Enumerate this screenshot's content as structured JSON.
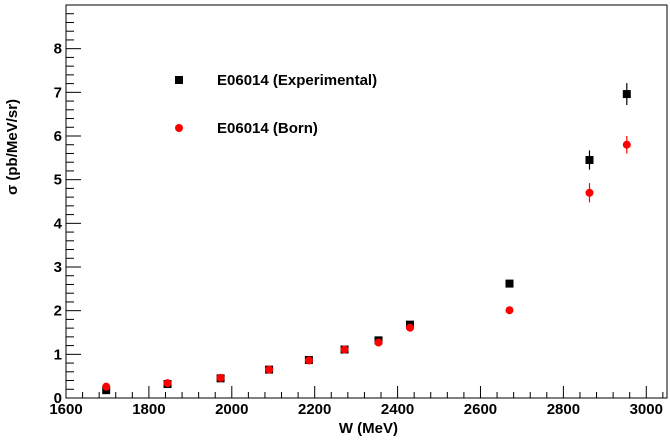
{
  "chart_data": {
    "type": "scatter",
    "title": "",
    "xlabel": "W (MeV)",
    "ylabel": "σ (pb/MeV/sr)",
    "xlim": [
      1600,
      3050
    ],
    "ylim": [
      0,
      9
    ],
    "x_ticks": [
      "1600",
      "1800",
      "2000",
      "2200",
      "2400",
      "2600",
      "2800",
      "3000"
    ],
    "y_ticks": [
      "0",
      "1",
      "2",
      "3",
      "4",
      "5",
      "6",
      "7",
      "8"
    ],
    "legend_position": "upper-left",
    "series": [
      {
        "name": "E06014 (Experimental)",
        "marker": "square",
        "color": "#000000",
        "points": [
          {
            "x": 1697,
            "y": 0.18,
            "err": 0.04
          },
          {
            "x": 1845,
            "y": 0.32,
            "err": 0.03
          },
          {
            "x": 1973,
            "y": 0.45,
            "err": 0.03
          },
          {
            "x": 2090,
            "y": 0.65,
            "err": 0.03
          },
          {
            "x": 2186,
            "y": 0.87,
            "err": 0.03
          },
          {
            "x": 2272,
            "y": 1.11,
            "err": 0.04
          },
          {
            "x": 2354,
            "y": 1.32,
            "err": 0.04
          },
          {
            "x": 2430,
            "y": 1.68,
            "err": 0.05
          },
          {
            "x": 2670,
            "y": 2.62,
            "err": 0.08
          },
          {
            "x": 2863,
            "y": 5.45,
            "err": 0.22
          },
          {
            "x": 2953,
            "y": 6.96,
            "err": 0.25
          }
        ]
      },
      {
        "name": "E06014 (Born)",
        "marker": "circle",
        "color": "#ff0000",
        "points": [
          {
            "x": 1697,
            "y": 0.26,
            "err": 0.03
          },
          {
            "x": 1845,
            "y": 0.34,
            "err": 0.03
          },
          {
            "x": 1973,
            "y": 0.46,
            "err": 0.03
          },
          {
            "x": 2090,
            "y": 0.65,
            "err": 0.03
          },
          {
            "x": 2186,
            "y": 0.86,
            "err": 0.03
          },
          {
            "x": 2272,
            "y": 1.11,
            "err": 0.03
          },
          {
            "x": 2354,
            "y": 1.27,
            "err": 0.03
          },
          {
            "x": 2430,
            "y": 1.61,
            "err": 0.04
          },
          {
            "x": 2670,
            "y": 2.01,
            "err": 0.05
          },
          {
            "x": 2863,
            "y": 4.7,
            "err": 0.22
          },
          {
            "x": 2953,
            "y": 5.8,
            "err": 0.2
          }
        ]
      }
    ]
  }
}
